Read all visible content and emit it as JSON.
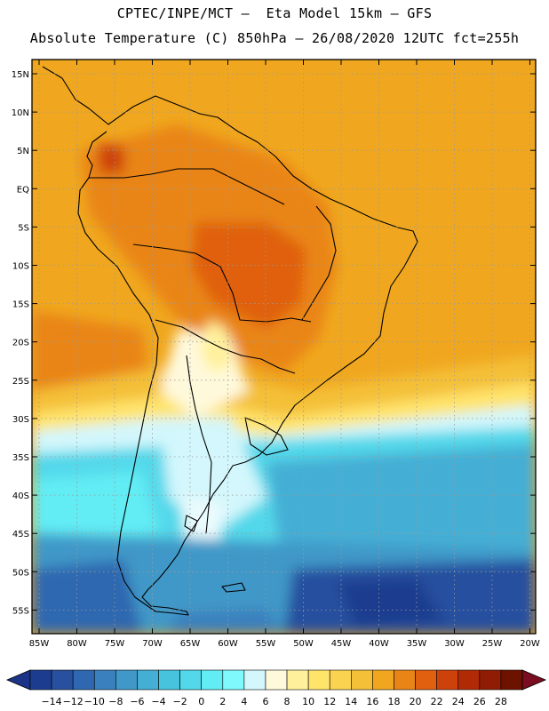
{
  "title_line1": "CPTEC/INPE/MCT –  Eta Model 15km – GFS",
  "title_line2": "Absolute Temperature (C) 850hPa – 26/08/2020 12UTC fct=255h",
  "lat_labels": [
    "15N",
    "10N",
    "5N",
    "EQ",
    "5S",
    "10S",
    "15S",
    "20S",
    "25S",
    "30S",
    "35S",
    "40S",
    "45S",
    "50S",
    "55S"
  ],
  "lon_labels": [
    "85W",
    "80W",
    "75W",
    "70W",
    "65W",
    "60W",
    "55W",
    "50W",
    "45W",
    "40W",
    "35W",
    "30W",
    "25W",
    "20W"
  ],
  "colorbar": {
    "labels": [
      "-14",
      "-12",
      "-10",
      "-8",
      "-6",
      "-4",
      "-2",
      "0",
      "2",
      "4",
      "6",
      "8",
      "10",
      "12",
      "14",
      "16",
      "18",
      "20",
      "22",
      "24",
      "26",
      "28"
    ],
    "colors": [
      "#1c3d8f",
      "#28509f",
      "#2f68b0",
      "#3a80be",
      "#3f98c8",
      "#44aed4",
      "#48c3de",
      "#52d8ea",
      "#62ecf4",
      "#7ff9fb",
      "#d3f7fc",
      "#fff9dc",
      "#fff19c",
      "#ffe46c",
      "#fad451",
      "#f4c038",
      "#f0a71f",
      "#e98517",
      "#e0600f",
      "#cd420b",
      "#b12a06",
      "#8f1c03",
      "#6e1200"
    ],
    "under_color": "#1b3487",
    "over_color": "#7a0d1f"
  }
}
